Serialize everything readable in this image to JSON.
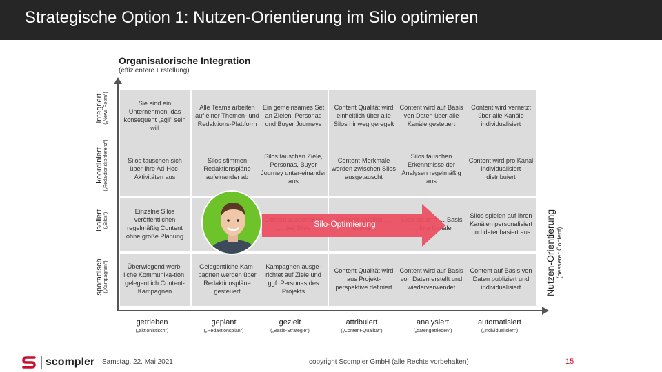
{
  "header": {
    "title": "Strategische Option 1: Nutzen-Orientierung im Silo optimieren"
  },
  "org_axis": {
    "title": "Organisatorische Integration",
    "subtitle": "(effizientere Erstellung)"
  },
  "rows": [
    {
      "label": "integriert",
      "sub": "(„News Room“)"
    },
    {
      "label": "koordiniert",
      "sub": "(„Redaktionskonferenz“)"
    },
    {
      "label": "isoliert",
      "sub": "(„Silos“)"
    },
    {
      "label": "sporadisch",
      "sub": "(„Kampagnen“)"
    }
  ],
  "columns": [
    {
      "label": "getrieben",
      "sub": "(„aktionistisch“)"
    },
    {
      "label": "geplant",
      "sub": "(„Redaktionsplan“)"
    },
    {
      "label": "gezielt",
      "sub": "(„Basis-Strategie“)"
    },
    {
      "label": "attribuiert",
      "sub": "(„Content-Qualität“)"
    },
    {
      "label": "analysiert",
      "sub": "(„datengetrieben“)"
    },
    {
      "label": "automatisiert",
      "sub": "(„individualisiert“)"
    }
  ],
  "cells": [
    [
      "Sie sind ein Unternehmen, das konsequent „agil“ sein will",
      "Alle Teams arbeiten auf einer Themen- und Redaktions-Plattform",
      "Ein gemeinsames Set an Zielen, Personas und Buyer Journeys",
      "Content Qualität wird einheitlich über alle Silos hinweg geregelt",
      "Content wird auf Basis von Daten über alle Kanäle gesteuert",
      "Content wird vernetzt über alle Kanäle individualisiert"
    ],
    [
      "Silos tauschen sich über Ihre Ad-Hoc-Aktivitäten aus",
      "Silos stimmen Redaktionspläne aufeinander ab",
      "Silos tauschen Ziele, Personas, Buyer Journey unter-einander aus",
      "Content-Merkmale werden zwischen Silos ausgetauscht",
      "Silos tauschen Erkenntnisse der Analysen regelmäßig aus",
      "Content wird pro Kanal individualisiert distribuiert"
    ],
    [
      "Einzelne Silos veröffentlichen regelmäßig Content ohne große Planung",
      "Si… re… Re…",
      "Content ausgerichtet … des Silos",
      "Content Qualität … definiert",
      "Silos steuern … Basis … ihre Kanäle",
      "Silos spielen auf ihren Kanälen personalisiert und datenbasiert aus"
    ],
    [
      "Überwiegend werb-liche Kommunika-tion, gelegentlich Content-Kampagnen",
      "Gelegentliche Kam-pagnen werden über Redaktionspläne gesteuert",
      "Kampagnen ausge-richtet auf Ziele und ggf. Personas des Projekts",
      "Content Qualität wird aus Projekt-perspektive definiert",
      "Content wird auf Basis von Daten erstellt und wiederverwendet",
      "Content auf Basis von Daten publiziert und individualisiert"
    ]
  ],
  "right_axis": {
    "title": "Nutzen-Orientierung",
    "subtitle": "(besserer Content)"
  },
  "highlight": {
    "label": "Silo-Optimierung",
    "color": "#ea4c5f"
  },
  "footer": {
    "logo_text": "scompler",
    "date": "Samstag, 22. Mai 2021",
    "copyright": "copyright Scompler GmbH (alle Rechte vorbehalten)",
    "page": "15"
  },
  "colors": {
    "title_bar": "#262626",
    "cell": "#dcdcdc",
    "accent": "#c8102e",
    "portrait_bg": "#6ec32a"
  }
}
